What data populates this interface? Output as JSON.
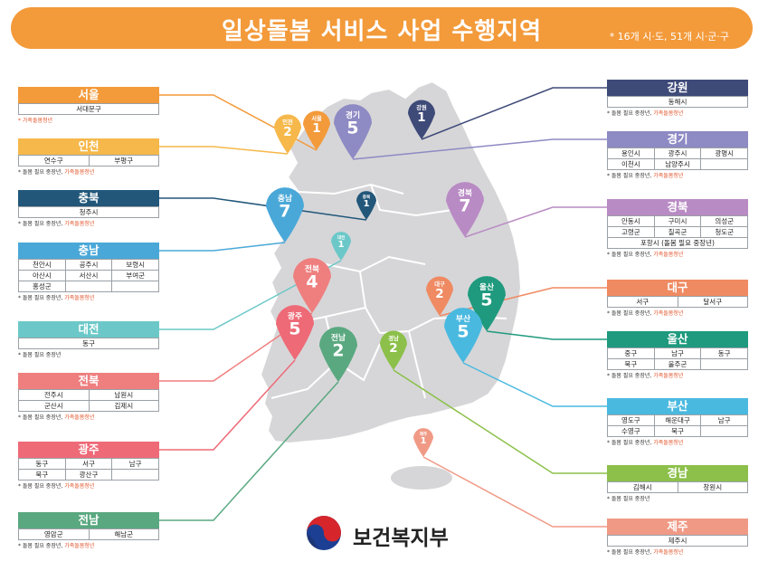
{
  "header": {
    "title": "일상돌봄 서비스 사업 수행지역",
    "subtitle": "* 16개 시·도, 51개 시·군·구"
  },
  "colors": {
    "banner": "#f39a3a",
    "map_fill": "#d6d6d8",
    "map_border": "#ffffff"
  },
  "ministry": {
    "name": "보건복지부",
    "icon": "taegeuk-emblem-icon"
  },
  "regions": [
    {
      "id": "seoul",
      "name": "서울",
      "color": "#f39a3a",
      "cols": 1,
      "cells": [
        "서대문구"
      ],
      "note": "",
      "note_hl": "* 가족돌봄청년"
    },
    {
      "id": "incheon",
      "name": "인천",
      "color": "#f6b84a",
      "cols": 2,
      "cells": [
        "연수구",
        "부평구"
      ],
      "note": "* 돌봄 필요 중장년,",
      "note_hl": " 가족돌봄청년"
    },
    {
      "id": "chungbuk",
      "name": "충북",
      "color": "#22577a",
      "cols": 1,
      "cells": [
        "청주시"
      ],
      "note": "* 돌봄 필요 중장년,",
      "note_hl": " 가족돌봄청년"
    },
    {
      "id": "chungnam",
      "name": "충남",
      "color": "#4aa8d8",
      "cols": 3,
      "cells": [
        "천안시",
        "공주시",
        "보령시",
        "아산시",
        "서산시",
        "부여군",
        "홍성군",
        "",
        ""
      ],
      "note": "* 돌봄 필요 중장년,",
      "note_hl": " 가족돌봄청년"
    },
    {
      "id": "daejeon",
      "name": "대전",
      "color": "#6cc8c8",
      "cols": 1,
      "cells": [
        "동구"
      ],
      "note": "* 돌봄 필요 중장년",
      "note_hl": ""
    },
    {
      "id": "jeonbuk",
      "name": "전북",
      "color": "#ef7f7f",
      "cols": 2,
      "cells": [
        "전주시",
        "남원시",
        "군산시",
        "김제시"
      ],
      "note": "* 돌봄 필요 중장년,",
      "note_hl": " 가족돌봄청년"
    },
    {
      "id": "gwangju",
      "name": "광주",
      "color": "#ee6a77",
      "cols": 3,
      "cells": [
        "동구",
        "서구",
        "남구",
        "북구",
        "광산구",
        ""
      ],
      "note": "* 돌봄 필요 중장년,",
      "note_hl": " 가족돌봄청년"
    },
    {
      "id": "jeonnam",
      "name": "전남",
      "color": "#5aa880",
      "cols": 2,
      "cells": [
        "영암군",
        "해남군"
      ],
      "note": "* 돌봄 필요 중장년,",
      "note_hl": " 가족돌봄청년"
    },
    {
      "id": "gangwon",
      "name": "강원",
      "color": "#3e4a78",
      "cols": 1,
      "cells": [
        "동해시"
      ],
      "note": "* 돌봄 필요 중장년,",
      "note_hl": " 가족돌봄청년"
    },
    {
      "id": "gyeonggi",
      "name": "경기",
      "color": "#8e8ac4",
      "cols": 3,
      "cells": [
        "용인시",
        "광주시",
        "광명시",
        "이천시",
        "남양주시",
        ""
      ],
      "note": "* 돌봄 필요 중장년,",
      "note_hl": " 가족돌봄청년"
    },
    {
      "id": "gyeongbuk",
      "name": "경북",
      "color": "#b98bc4",
      "cols": 3,
      "cells": [
        "안동시",
        "구미시",
        "의성군",
        "고령군",
        "칠곡군",
        "청도군"
      ],
      "extra": "포항시 (돌봄 필요 중장년)",
      "note": "* 돌봄 필요 중장년,",
      "note_hl": " 가족돌봄청년"
    },
    {
      "id": "daegu",
      "name": "대구",
      "color": "#ef8a62",
      "cols": 2,
      "cells": [
        "서구",
        "달서구"
      ],
      "note": "* 돌봄 필요 중장년,",
      "note_hl": " 가족돌봄청년"
    },
    {
      "id": "ulsan",
      "name": "울산",
      "color": "#1f9a7e",
      "cols": 3,
      "cells": [
        "중구",
        "남구",
        "동구",
        "북구",
        "울주군",
        ""
      ],
      "note": "* 돌봄 필요 중장년,",
      "note_hl": " 가족돌봄청년"
    },
    {
      "id": "busan",
      "name": "부산",
      "color": "#4ab9e0",
      "cols": 3,
      "cells": [
        "영도구",
        "해운대구",
        "남구",
        "수영구",
        "북구",
        ""
      ],
      "note": "* 돌봄 필요 중장년,",
      "note_hl": " 가족돌봄청년"
    },
    {
      "id": "gyeongnam",
      "name": "경남",
      "color": "#8cc04a",
      "cols": 2,
      "cells": [
        "김해시",
        "창원시"
      ],
      "note": "* 돌봄 필요 중장년",
      "note_hl": ""
    },
    {
      "id": "jeju",
      "name": "제주",
      "color": "#f09a86",
      "cols": 1,
      "cells": [
        "제주시"
      ],
      "note": "* 돌봄 필요 중장년,",
      "note_hl": " 가족돌봄청년"
    }
  ],
  "pins": [
    {
      "region": "incheon",
      "name": "인천",
      "count": "2",
      "color": "#f6b84a",
      "size": "s"
    },
    {
      "region": "seoul",
      "name": "서울",
      "count": "1",
      "color": "#f39a3a",
      "size": "s"
    },
    {
      "region": "gyeonggi",
      "name": "경기",
      "count": "5",
      "color": "#8e8ac4",
      "size": "m"
    },
    {
      "region": "gangwon",
      "name": "강원",
      "count": "1",
      "color": "#3e4a78",
      "size": "s"
    },
    {
      "region": "chungbuk",
      "name": "충북",
      "count": "1",
      "color": "#22577a",
      "size": "xs"
    },
    {
      "region": "chungnam",
      "name": "충남",
      "count": "7",
      "color": "#4aa8d8",
      "size": "m"
    },
    {
      "region": "daejeon",
      "name": "대전",
      "count": "1",
      "color": "#6cc8c8",
      "size": "xs"
    },
    {
      "region": "gyeongbuk",
      "name": "경북",
      "count": "7",
      "color": "#b98bc4",
      "size": "m"
    },
    {
      "region": "jeonbuk",
      "name": "전북",
      "count": "4",
      "color": "#ef7f7f",
      "size": "m"
    },
    {
      "region": "daegu",
      "name": "대구",
      "count": "2",
      "color": "#ef8a62",
      "size": "s"
    },
    {
      "region": "ulsan",
      "name": "울산",
      "count": "5",
      "color": "#1f9a7e",
      "size": "m"
    },
    {
      "region": "gwangju",
      "name": "광주",
      "count": "5",
      "color": "#ee6a77",
      "size": "m"
    },
    {
      "region": "jeonnam",
      "name": "전남",
      "count": "2",
      "color": "#5aa880",
      "size": "m"
    },
    {
      "region": "gyeongnam",
      "name": "경남",
      "count": "2",
      "color": "#8cc04a",
      "size": "s"
    },
    {
      "region": "busan",
      "name": "부산",
      "count": "5",
      "color": "#4ab9e0",
      "size": "m"
    },
    {
      "region": "jeju",
      "name": "제주",
      "count": "1",
      "color": "#f09a86",
      "size": "xs"
    }
  ]
}
